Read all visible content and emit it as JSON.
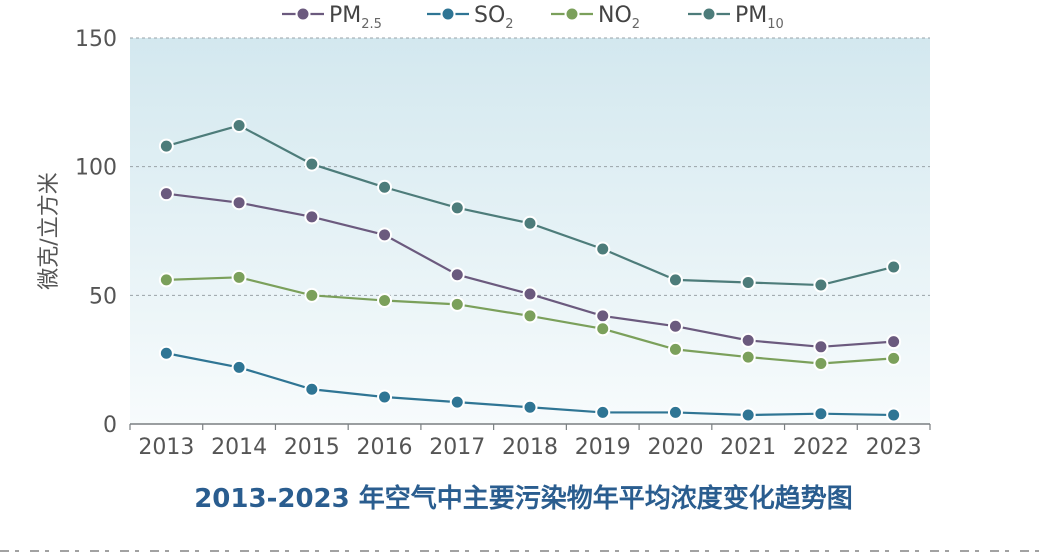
{
  "chart_data": {
    "type": "line",
    "title": "2013-2023 年空气中主要污染物年平均浓度变化趋势图",
    "ylabel": "微克/立方米",
    "xlabel": "",
    "ylim": [
      0,
      150
    ],
    "yticks": [
      0,
      50,
      100,
      150
    ],
    "grid": true,
    "legend_position": "top",
    "categories": [
      "2013",
      "2014",
      "2015",
      "2016",
      "2017",
      "2018",
      "2019",
      "2020",
      "2021",
      "2022",
      "2023"
    ],
    "series": [
      {
        "name": "PM",
        "sub": "2.5",
        "color": "#6b5a7e",
        "values": [
          89.5,
          86,
          80.5,
          73.5,
          58,
          50.5,
          42,
          38,
          32.5,
          30,
          32
        ]
      },
      {
        "name": "SO",
        "sub": "2",
        "color": "#2f7594",
        "values": [
          27.5,
          22,
          13.5,
          10.5,
          8.5,
          6.5,
          4.5,
          4.5,
          3.5,
          4,
          3.5
        ]
      },
      {
        "name": "NO",
        "sub": "2",
        "color": "#7ba05b",
        "values": [
          56,
          57,
          50,
          48,
          46.5,
          42,
          37,
          29,
          26,
          23.5,
          25.5
        ]
      },
      {
        "name": "PM",
        "sub": "10",
        "color": "#4d7c7a",
        "values": [
          108,
          116,
          101,
          92,
          84,
          78,
          68,
          56,
          55,
          54,
          61
        ]
      }
    ]
  }
}
